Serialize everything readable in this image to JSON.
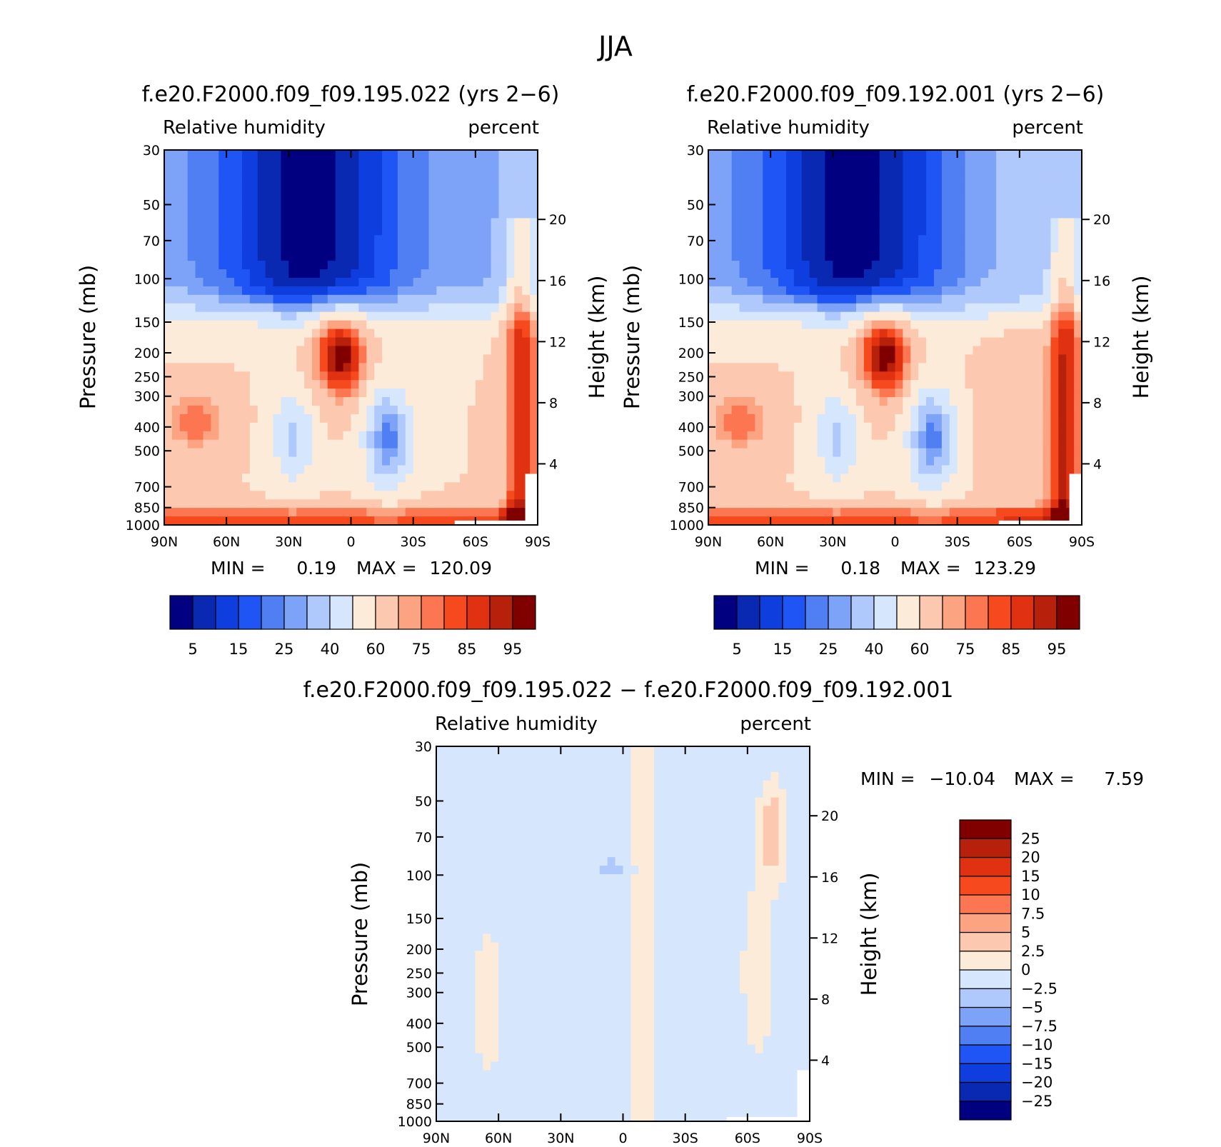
{
  "figure": {
    "title": "JJA"
  },
  "colors": {
    "abs_levels": [
      "#000080",
      "#0a29b2",
      "#0f3ede",
      "#1f55f5",
      "#4f7ff2",
      "#7ca3f7",
      "#b0c9fc",
      "#d6e6fc",
      "#fdebda",
      "#fcc9b0",
      "#fca382",
      "#fb7651",
      "#f7491e",
      "#e03110",
      "#b7200b",
      "#800000"
    ],
    "diff_levels": [
      "#000080",
      "#0a29b2",
      "#0f3ede",
      "#1f55f5",
      "#4f7ff2",
      "#7ca3f7",
      "#b0c9fc",
      "#d6e6fc",
      "#fdebda",
      "#fcc9b0",
      "#fca382",
      "#fb7651",
      "#f7491e",
      "#e03110",
      "#b7200b",
      "#800000"
    ]
  },
  "chart_data": [
    {
      "id": "panel-a",
      "type": "heatmap",
      "title": "f.e20.F2000.f09_f09.195.022 (yrs 2−6)",
      "left_label": "Relative humidity",
      "right_label": "percent",
      "ylabel": "Pressure (mb)",
      "y2label": "Height (km)",
      "x_ticks": [
        "90N",
        "60N",
        "30N",
        "0",
        "30S",
        "60S",
        "90S"
      ],
      "x_range": [
        90,
        -90
      ],
      "y_ticks": [
        "30",
        "50",
        "70",
        "100",
        "150",
        "200",
        "250",
        "300",
        "400",
        "500",
        "700",
        "850",
        "1000"
      ],
      "y_tick_values": [
        30,
        50,
        70,
        100,
        150,
        200,
        250,
        300,
        400,
        500,
        700,
        850,
        1000
      ],
      "y2_ticks": [
        "20",
        "16",
        "12",
        "8",
        "4"
      ],
      "y2_tick_values": [
        20,
        16,
        12,
        8,
        4
      ],
      "min_label": "MIN =",
      "min_value": "0.19",
      "max_label": "MAX =",
      "max_value": "120.09",
      "colorbar_labels": [
        "5",
        "15",
        "25",
        "40",
        "60",
        "75",
        "85",
        "95"
      ],
      "colorbar_levels": [
        5,
        10,
        15,
        20,
        25,
        30,
        40,
        50,
        60,
        70,
        75,
        80,
        85,
        90,
        95
      ]
    },
    {
      "id": "panel-b",
      "type": "heatmap",
      "title": "f.e20.F2000.f09_f09.192.001 (yrs 2−6)",
      "left_label": "Relative humidity",
      "right_label": "percent",
      "ylabel": "Pressure (mb)",
      "y2label": "Height (km)",
      "x_ticks": [
        "90N",
        "60N",
        "30N",
        "0",
        "30S",
        "60S",
        "90S"
      ],
      "x_range": [
        90,
        -90
      ],
      "y_ticks": [
        "30",
        "50",
        "70",
        "100",
        "150",
        "200",
        "250",
        "300",
        "400",
        "500",
        "700",
        "850",
        "1000"
      ],
      "y_tick_values": [
        30,
        50,
        70,
        100,
        150,
        200,
        250,
        300,
        400,
        500,
        700,
        850,
        1000
      ],
      "y2_ticks": [
        "20",
        "16",
        "12",
        "8",
        "4"
      ],
      "y2_tick_values": [
        20,
        16,
        12,
        8,
        4
      ],
      "min_label": "MIN =",
      "min_value": "0.18",
      "max_label": "MAX =",
      "max_value": "123.29",
      "colorbar_labels": [
        "5",
        "15",
        "25",
        "40",
        "60",
        "75",
        "85",
        "95"
      ],
      "colorbar_levels": [
        5,
        10,
        15,
        20,
        25,
        30,
        40,
        50,
        60,
        70,
        75,
        80,
        85,
        90,
        95
      ]
    },
    {
      "id": "panel-diff",
      "type": "heatmap",
      "title": "f.e20.F2000.f09_f09.195.022 − f.e20.F2000.f09_f09.192.001",
      "left_label": "Relative humidity",
      "right_label": "percent",
      "ylabel": "Pressure (mb)",
      "y2label": "Height (km)",
      "x_ticks": [
        "90N",
        "60N",
        "30N",
        "0",
        "30S",
        "60S",
        "90S"
      ],
      "x_range": [
        90,
        -90
      ],
      "y_ticks": [
        "30",
        "50",
        "70",
        "100",
        "150",
        "200",
        "250",
        "300",
        "400",
        "500",
        "700",
        "850",
        "1000"
      ],
      "y_tick_values": [
        30,
        50,
        70,
        100,
        150,
        200,
        250,
        300,
        400,
        500,
        700,
        850,
        1000
      ],
      "y2_ticks": [
        "20",
        "16",
        "12",
        "8",
        "4"
      ],
      "y2_tick_values": [
        20,
        16,
        12,
        8,
        4
      ],
      "min_label": "MIN =",
      "min_value": "−10.04",
      "max_label": "MAX =",
      "max_value": "7.59",
      "colorbar_labels": [
        "25",
        "20",
        "15",
        "10",
        "7.5",
        "5",
        "2.5",
        "0",
        "−2.5",
        "−5",
        "−7.5",
        "−10",
        "−15",
        "−20",
        "−25"
      ],
      "colorbar_levels": [
        -25,
        -20,
        -15,
        -10,
        -7.5,
        -5,
        -2.5,
        0,
        2.5,
        5,
        7.5,
        10,
        15,
        20,
        25
      ]
    }
  ]
}
